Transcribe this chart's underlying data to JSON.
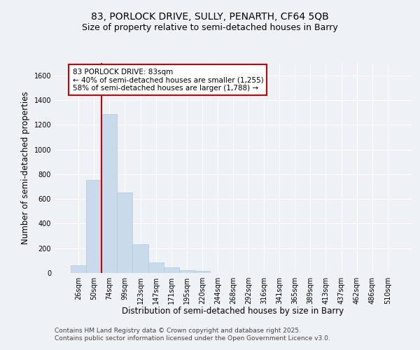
{
  "title_line1": "83, PORLOCK DRIVE, SULLY, PENARTH, CF64 5QB",
  "title_line2": "Size of property relative to semi-detached houses in Barry",
  "xlabel": "Distribution of semi-detached houses by size in Barry",
  "ylabel": "Number of semi-detached properties",
  "categories": [
    "26sqm",
    "50sqm",
    "74sqm",
    "99sqm",
    "123sqm",
    "147sqm",
    "171sqm",
    "195sqm",
    "220sqm",
    "244sqm",
    "268sqm",
    "292sqm",
    "316sqm",
    "341sqm",
    "365sqm",
    "389sqm",
    "413sqm",
    "437sqm",
    "462sqm",
    "486sqm",
    "510sqm"
  ],
  "values": [
    60,
    755,
    1285,
    650,
    230,
    85,
    45,
    25,
    15,
    0,
    0,
    0,
    0,
    0,
    0,
    0,
    0,
    0,
    0,
    0,
    0
  ],
  "bar_color": "#c9daea",
  "bar_edgecolor": "#b0c8dc",
  "vline_x_index": 2,
  "vline_color": "#cc0000",
  "ylim_max": 1700,
  "yticks": [
    0,
    200,
    400,
    600,
    800,
    1000,
    1200,
    1400,
    1600
  ],
  "annotation_text": "83 PORLOCK DRIVE: 83sqm\n← 40% of semi-detached houses are smaller (1,255)\n58% of semi-detached houses are larger (1,788) →",
  "annotation_box_edgecolor": "#cc0000",
  "background_color": "#eef2f7",
  "grid_color": "#ffffff",
  "title_fontsize": 10,
  "subtitle_fontsize": 9,
  "axis_label_fontsize": 8.5,
  "tick_fontsize": 7,
  "annot_fontsize": 7.5,
  "footer_fontsize": 6.5,
  "footer_line1": "Contains HM Land Registry data © Crown copyright and database right 2025.",
  "footer_line2": "Contains public sector information licensed under the Open Government Licence v3.0."
}
